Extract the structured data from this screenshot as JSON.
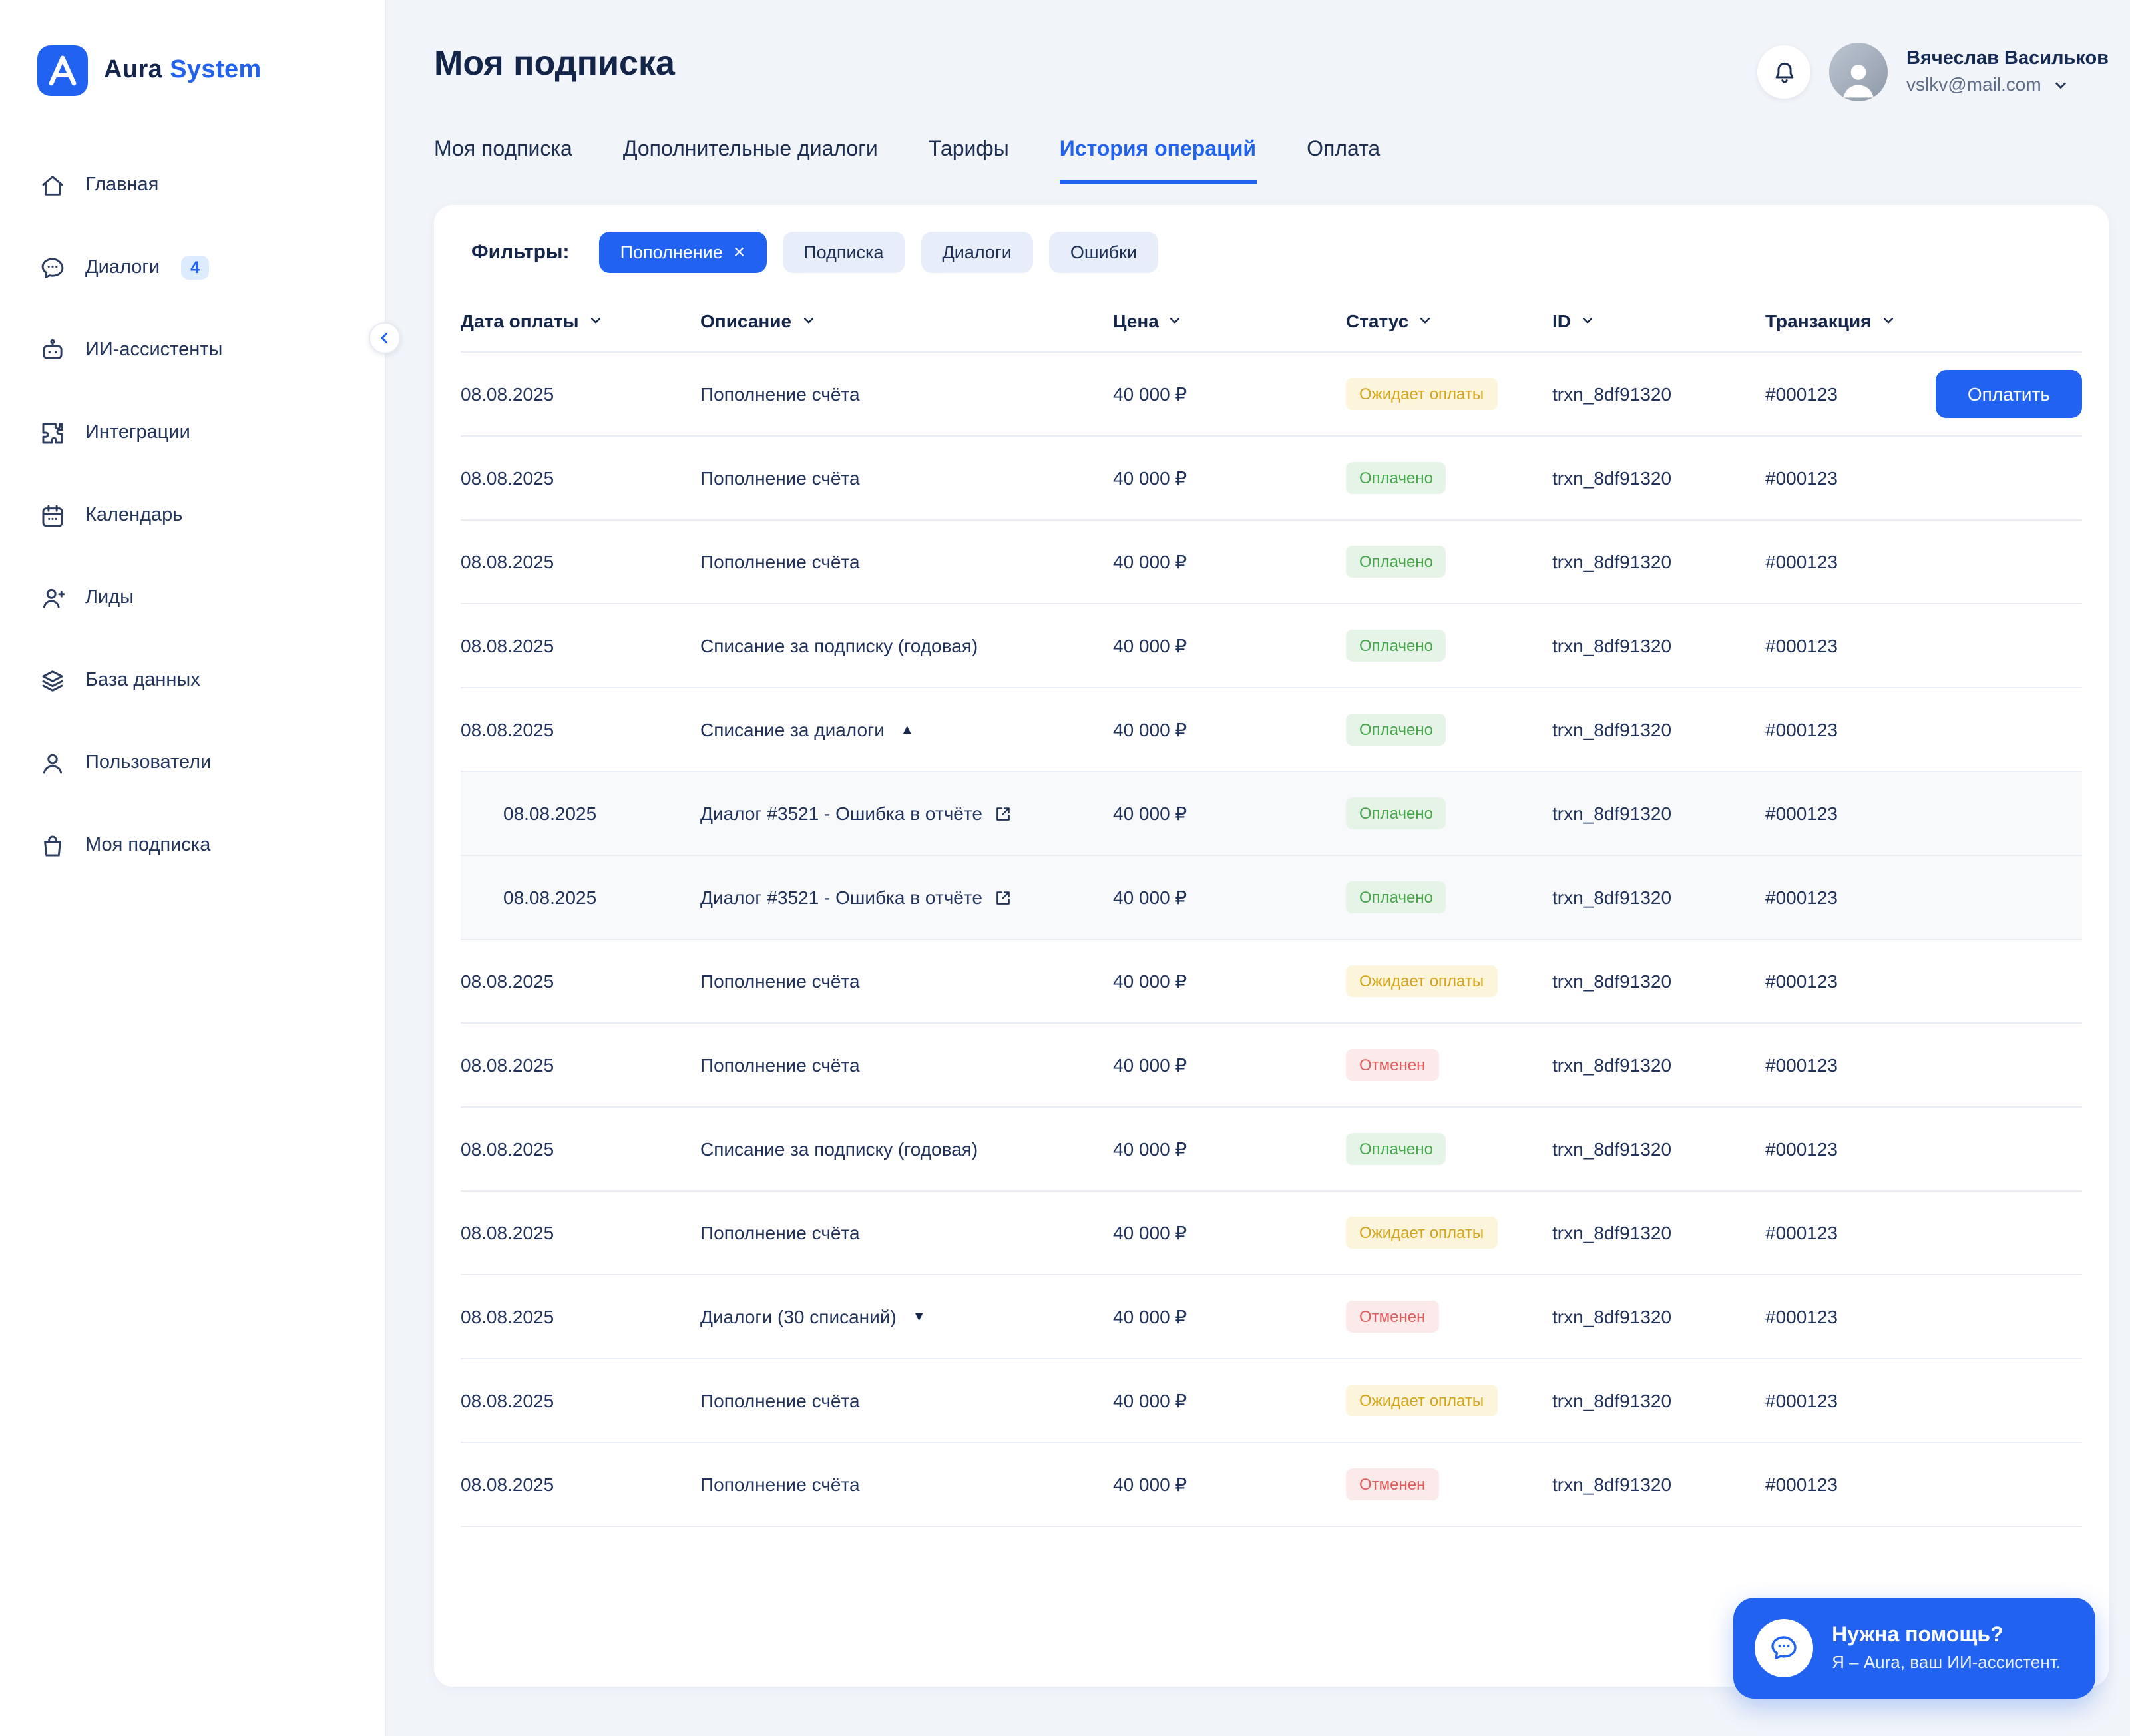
{
  "brand": {
    "name_primary": "Aura",
    "name_secondary": "System"
  },
  "sidebar": {
    "items": [
      {
        "id": "home",
        "icon": "home",
        "label": "Главная"
      },
      {
        "id": "dialogs",
        "icon": "chat",
        "label": "Диалоги",
        "badge": "4"
      },
      {
        "id": "assistants",
        "icon": "bot",
        "label": "ИИ-ассистенты"
      },
      {
        "id": "integrations",
        "icon": "puzzle",
        "label": "Интеграции"
      },
      {
        "id": "calendar",
        "icon": "calendar",
        "label": "Календарь"
      },
      {
        "id": "leads",
        "icon": "user-plus",
        "label": "Лиды"
      },
      {
        "id": "database",
        "icon": "layers",
        "label": "База данных"
      },
      {
        "id": "users",
        "icon": "user",
        "label": "Пользователи"
      },
      {
        "id": "subscription",
        "icon": "bag",
        "label": "Моя подписка"
      }
    ]
  },
  "header": {
    "title": "Моя подписка",
    "user": {
      "name": "Вячеслав Васильков",
      "email": "vslkv@mail.com"
    }
  },
  "tabs": [
    {
      "id": "subscription",
      "label": "Моя подписка",
      "active": false
    },
    {
      "id": "extra-dialogs",
      "label": "Дополнительные диалоги",
      "active": false
    },
    {
      "id": "tariffs",
      "label": "Тарифы",
      "active": false
    },
    {
      "id": "history",
      "label": "История операций",
      "active": true
    },
    {
      "id": "payment",
      "label": "Оплата",
      "active": false
    }
  ],
  "filters": {
    "label": "Фильтры:",
    "chips": [
      {
        "id": "topup",
        "label": "Пополнение",
        "active": true
      },
      {
        "id": "subscription",
        "label": "Подписка",
        "active": false
      },
      {
        "id": "dialogs",
        "label": "Диалоги",
        "active": false
      },
      {
        "id": "errors",
        "label": "Ошибки",
        "active": false
      }
    ]
  },
  "table": {
    "columns": [
      {
        "id": "date",
        "label": "Дата оплаты"
      },
      {
        "id": "description",
        "label": "Описание"
      },
      {
        "id": "price",
        "label": "Цена"
      },
      {
        "id": "status",
        "label": "Статус"
      },
      {
        "id": "id",
        "label": "ID"
      },
      {
        "id": "transaction",
        "label": "Транзакция"
      }
    ],
    "status_styles": {
      "pending": {
        "label": "Ожидает оплаты",
        "bg": "#FCF5DC",
        "color": "#D3A41B"
      },
      "paid": {
        "label": "Оплачено",
        "bg": "#E6F4E7",
        "color": "#47A54B"
      },
      "canceled": {
        "label": "Отменен",
        "bg": "#FCE9E9",
        "color": "#E25B5B"
      }
    },
    "rows": [
      {
        "date": "08.08.2025",
        "description": "Пополнение счёта",
        "price": "40 000 ₽",
        "status": "pending",
        "id": "trxn_8df91320",
        "transaction": "#000123",
        "action": "Оплатить"
      },
      {
        "date": "08.08.2025",
        "description": "Пополнение счёта",
        "price": "40 000 ₽",
        "status": "paid",
        "id": "trxn_8df91320",
        "transaction": "#000123"
      },
      {
        "date": "08.08.2025",
        "description": "Пополнение счёта",
        "price": "40 000 ₽",
        "status": "paid",
        "id": "trxn_8df91320",
        "transaction": "#000123"
      },
      {
        "date": "08.08.2025",
        "description": "Списание за подписку (годовая)",
        "price": "40 000 ₽",
        "status": "paid",
        "id": "trxn_8df91320",
        "transaction": "#000123"
      },
      {
        "date": "08.08.2025",
        "description": "Списание за диалоги",
        "price": "40 000 ₽",
        "status": "paid",
        "id": "trxn_8df91320",
        "transaction": "#000123",
        "expand": "up"
      },
      {
        "date": "08.08.2025",
        "description": "Диалог #3521 - Ошибка в отчёте",
        "price": "40 000 ₽",
        "status": "paid",
        "id": "trxn_8df91320",
        "transaction": "#000123",
        "sub": true,
        "link": true
      },
      {
        "date": "08.08.2025",
        "description": "Диалог #3521 - Ошибка в отчёте",
        "price": "40 000 ₽",
        "status": "paid",
        "id": "trxn_8df91320",
        "transaction": "#000123",
        "sub": true,
        "link": true
      },
      {
        "date": "08.08.2025",
        "description": "Пополнение счёта",
        "price": "40 000 ₽",
        "status": "pending",
        "id": "trxn_8df91320",
        "transaction": "#000123"
      },
      {
        "date": "08.08.2025",
        "description": "Пополнение счёта",
        "price": "40 000 ₽",
        "status": "canceled",
        "id": "trxn_8df91320",
        "transaction": "#000123"
      },
      {
        "date": "08.08.2025",
        "description": "Списание за подписку (годовая)",
        "price": "40 000 ₽",
        "status": "paid",
        "id": "trxn_8df91320",
        "transaction": "#000123"
      },
      {
        "date": "08.08.2025",
        "description": "Пополнение счёта",
        "price": "40 000 ₽",
        "status": "pending",
        "id": "trxn_8df91320",
        "transaction": "#000123"
      },
      {
        "date": "08.08.2025",
        "description": "Диалоги (30 списаний)",
        "price": "40 000 ₽",
        "status": "canceled",
        "id": "trxn_8df91320",
        "transaction": "#000123",
        "expand": "down"
      },
      {
        "date": "08.08.2025",
        "description": "Пополнение счёта",
        "price": "40 000 ₽",
        "status": "pending",
        "id": "trxn_8df91320",
        "transaction": "#000123"
      },
      {
        "date": "08.08.2025",
        "description": "Пополнение счёта",
        "price": "40 000 ₽",
        "status": "canceled",
        "id": "trxn_8df91320",
        "transaction": "#000123"
      }
    ]
  },
  "chat_widget": {
    "title": "Нужна помощь?",
    "subtitle": "Я – Aura, ваш ИИ-ассистент."
  },
  "colors": {
    "accent": "#2163F0"
  }
}
